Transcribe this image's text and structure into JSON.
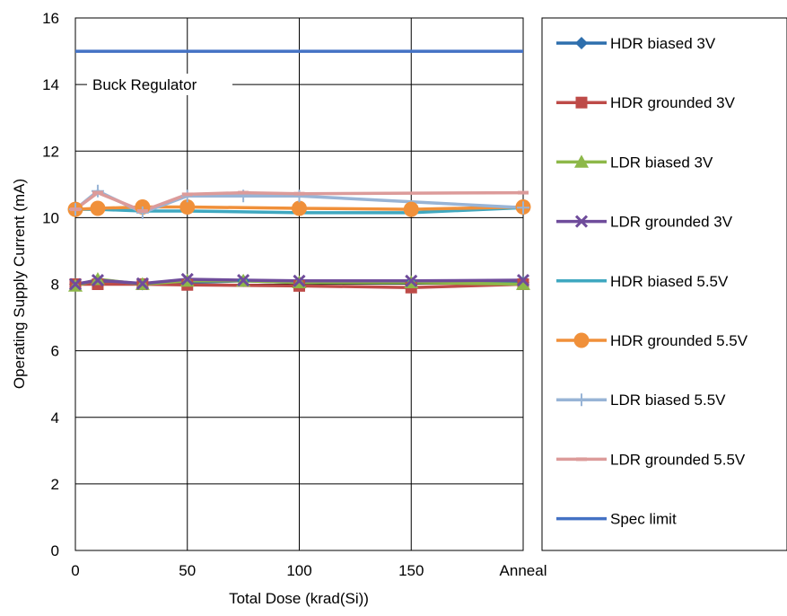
{
  "chart_data": {
    "type": "line",
    "xlabel": "Total Dose (krad(Si))",
    "ylabel": "Operating Supply Current (mA)",
    "ylim": [
      0,
      16
    ],
    "yticks": [
      "0",
      "2",
      "4",
      "6",
      "8",
      "10",
      "12",
      "14",
      "16"
    ],
    "xlim": [
      0,
      200
    ],
    "xticks": [
      {
        "value": 0,
        "label": "0"
      },
      {
        "value": 50,
        "label": "50"
      },
      {
        "value": 100,
        "label": "100"
      },
      {
        "value": 150,
        "label": "150"
      },
      {
        "value": 200,
        "label": "Anneal"
      }
    ],
    "grid": true,
    "legend_position": "right",
    "annotation": "Buck Regulator",
    "series": [
      {
        "name": "HDR biased 3V",
        "color": "#2e6fad",
        "marker": "diamond",
        "x": [
          0,
          10,
          30,
          50,
          75,
          100,
          150,
          200
        ],
        "y": [
          8.0,
          8.1,
          8.0,
          8.05,
          8.1,
          8.05,
          8.05,
          8.05
        ]
      },
      {
        "name": "HDR grounded 3V",
        "color": "#be4b48",
        "marker": "square",
        "x": [
          0,
          10,
          30,
          50,
          100,
          150,
          200
        ],
        "y": [
          8.0,
          8.0,
          8.0,
          7.98,
          7.95,
          7.9,
          8.0
        ]
      },
      {
        "name": "LDR biased 3V",
        "color": "#8db849",
        "marker": "triangle",
        "x": [
          0,
          10,
          30,
          50,
          75,
          100,
          150,
          200
        ],
        "y": [
          7.95,
          8.15,
          8.0,
          8.1,
          8.1,
          8.05,
          8.05,
          8.0
        ]
      },
      {
        "name": "LDR grounded 3V",
        "color": "#6f4c9b",
        "marker": "x",
        "x": [
          0,
          10,
          30,
          50,
          75,
          100,
          150,
          200
        ],
        "y": [
          8.0,
          8.12,
          8.02,
          8.15,
          8.12,
          8.1,
          8.1,
          8.12
        ]
      },
      {
        "name": "HDR biased 5.5V",
        "color": "#3fa8c0",
        "marker": "none",
        "x": [
          0,
          10,
          30,
          50,
          100,
          150,
          200
        ],
        "y": [
          10.25,
          10.25,
          10.2,
          10.2,
          10.15,
          10.15,
          10.3
        ]
      },
      {
        "name": "HDR grounded 5.5V",
        "color": "#f0903a",
        "marker": "circle",
        "x": [
          0,
          10,
          30,
          50,
          100,
          150,
          200
        ],
        "y": [
          10.25,
          10.28,
          10.32,
          10.32,
          10.28,
          10.25,
          10.32
        ]
      },
      {
        "name": "LDR biased 5.5V",
        "color": "#98b4d6",
        "marker": "plus",
        "x": [
          0,
          10,
          30,
          50,
          75,
          100,
          200
        ],
        "y": [
          10.25,
          10.8,
          10.15,
          10.65,
          10.65,
          10.65,
          10.3
        ]
      },
      {
        "name": "LDR grounded 5.5V",
        "color": "#dc9b9a",
        "marker": "dash",
        "x": [
          0,
          10,
          30,
          50,
          75,
          100,
          200
        ],
        "y": [
          10.25,
          10.75,
          10.2,
          10.7,
          10.75,
          10.72,
          10.75
        ]
      },
      {
        "name": "Spec limit",
        "color": "#4472c4",
        "marker": "none",
        "x": [
          0,
          200
        ],
        "y": [
          15,
          15
        ]
      }
    ]
  }
}
